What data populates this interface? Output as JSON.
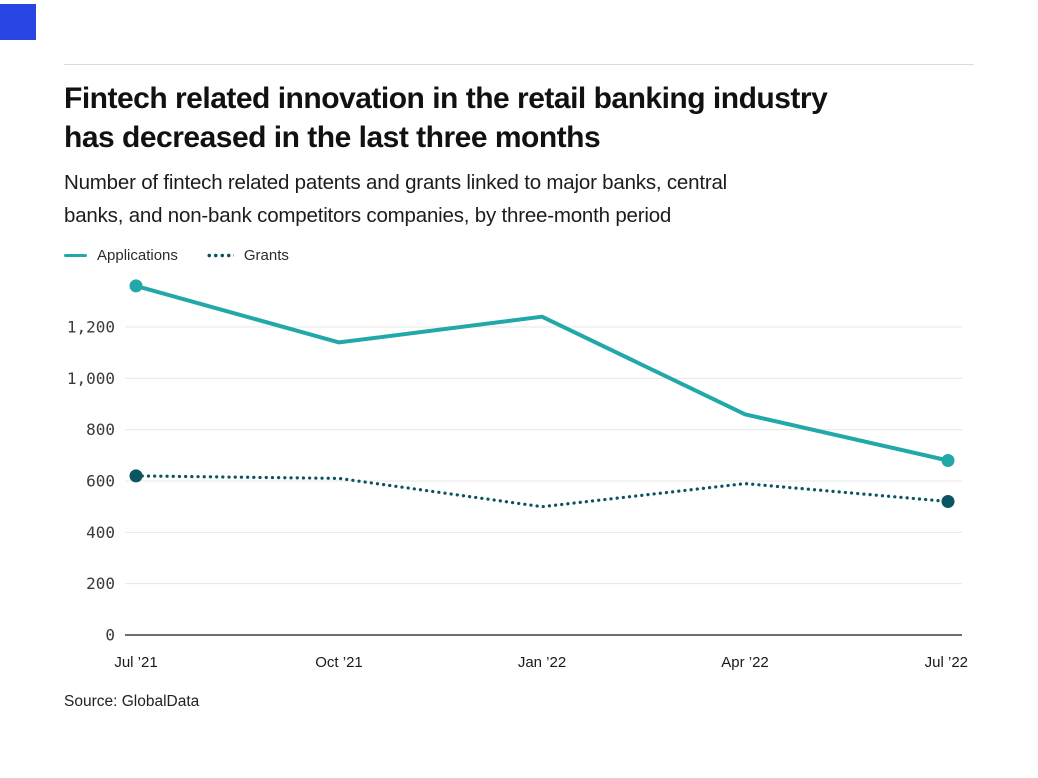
{
  "brand": {
    "color": "#2945e3"
  },
  "header": {
    "title_lines": [
      "Fintech related innovation in the retail banking industry",
      "has decreased in the last three months"
    ],
    "subtitle_lines": [
      "Number of fintech related patents and grants linked to major banks, central",
      "banks, and non-bank competitors companies, by three-month period"
    ]
  },
  "legend": [
    {
      "label": "Applications",
      "style": "solid",
      "color": "#23a8aa"
    },
    {
      "label": "Grants",
      "style": "dotted",
      "color": "#0d5463"
    }
  ],
  "source": "Source: GlobalData",
  "chart_data": {
    "type": "line",
    "title": "Fintech related innovation in the retail banking industry has decreased in the last three months",
    "subtitle": "Number of fintech related patents and grants linked to major banks, central banks, and non-bank competitors companies, by three-month period",
    "x": [
      "Jul ’21",
      "Oct ’21",
      "Jan ’22",
      "Apr ’22",
      "Jul ’22"
    ],
    "series": [
      {
        "name": "Applications",
        "values": [
          1360,
          1140,
          1240,
          860,
          680
        ],
        "color": "#23a8aa",
        "line_style": "solid",
        "line_width": 4
      },
      {
        "name": "Grants",
        "values": [
          620,
          610,
          500,
          590,
          520
        ],
        "color": "#0d5463",
        "line_style": "dotted",
        "line_width": 3.2
      }
    ],
    "ylim": [
      0,
      1400
    ],
    "yticks": [
      0,
      200,
      400,
      600,
      800,
      1000,
      1200
    ],
    "ytick_labels": [
      "0",
      "200",
      "400",
      "600",
      "800",
      "1,000",
      "1,200"
    ],
    "xlabel": "",
    "ylabel": "",
    "grid": "horizontal",
    "legend_position": "top-left",
    "endpoint_markers": true,
    "source": "Source: GlobalData"
  }
}
